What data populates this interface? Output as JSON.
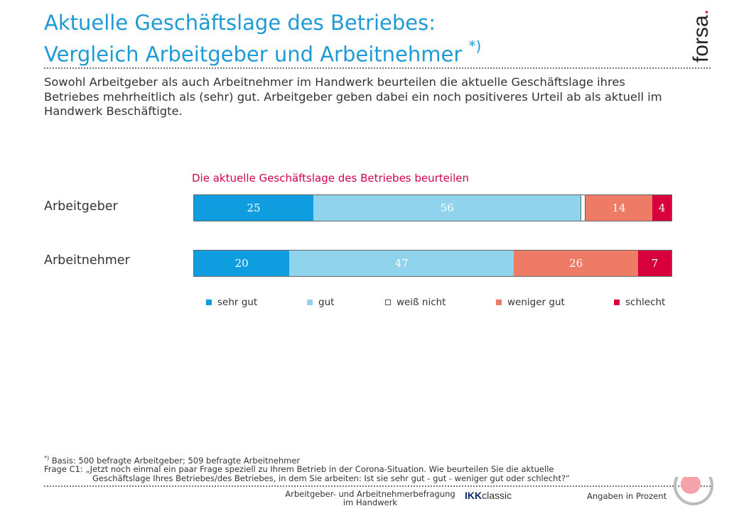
{
  "title_line1": "Aktuelle Geschäftslage des Betriebes:",
  "title_line2": "Vergleich Arbeitgeber und Arbeitnehmer",
  "title_marker": "*)",
  "logo_text": "forsa.",
  "intro": "Sowohl Arbeitgeber als auch Arbeitnehmer im Handwerk beurteilen die aktuelle Geschäftslage ihres Betriebes mehrheitlich als (sehr) gut. Arbeitgeber geben dabei ein noch positiveres Urteil ab als aktuell im Handwerk Beschäftigte.",
  "chart_data": {
    "type": "bar",
    "orientation": "horizontal-stacked",
    "title": "Die aktuelle Geschäftslage des Betriebes beurteilen",
    "categories": [
      "Arbeitgeber",
      "Arbeitnehmer"
    ],
    "series": [
      {
        "name": "sehr gut",
        "color": "#0f9ddf",
        "values": [
          25,
          20
        ]
      },
      {
        "name": "gut",
        "color": "#8fd3ec",
        "values": [
          56,
          47
        ]
      },
      {
        "name": "weiß nicht",
        "color": "#ffffff",
        "values": [
          1,
          0
        ]
      },
      {
        "name": "weniger gut",
        "color": "#ee7b66",
        "values": [
          14,
          26
        ]
      },
      {
        "name": "schlecht",
        "color": "#d8003c",
        "values": [
          4,
          7
        ]
      }
    ],
    "xlim": [
      0,
      100
    ],
    "legend": "bottom"
  },
  "footnote": {
    "marker": "*)",
    "basis": " Basis: 500 befragte Arbeitgeber; 509 befragte Arbeitnehmer",
    "question_line1": "Frage C1: „Jetzt noch einmal ein paar Frage speziell zu Ihrem Betrieb in der Corona-Situation. Wie beurteilen Sie die aktuelle",
    "question_line2": "Geschäftslage Ihres Betriebes/des Betriebes, in dem Sie arbeiten: Ist sie sehr gut - gut - weniger gut oder schlecht?“"
  },
  "bottom": {
    "survey_line1": "Arbeitgeber- und Arbeitnehmerbefragung",
    "survey_line2": "im Handwerk",
    "ikk_brand": "IKK",
    "ikk_suffix": "classic",
    "unit_note": "Angaben in Prozent"
  }
}
